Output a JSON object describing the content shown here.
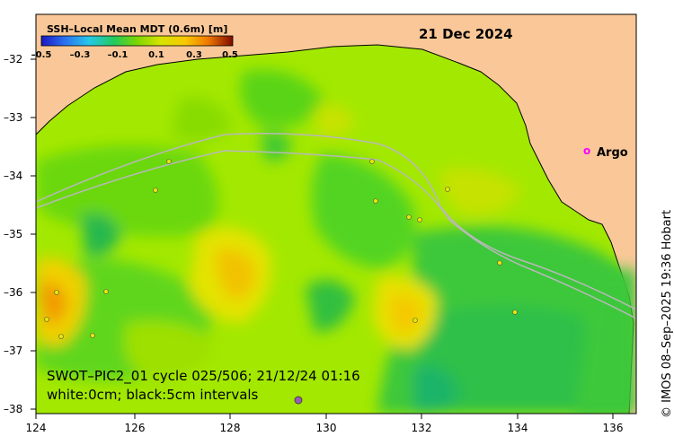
{
  "colorbar": {
    "title": "SSH–Local Mean MDT (0.6m) [m]",
    "ticks": [
      "–0.5",
      "–0.3",
      "–0.1",
      "0.1",
      "0.3",
      "0.5"
    ]
  },
  "date": "21 Dec 2024",
  "argo_marker": "o",
  "argo_label": "Argo",
  "caption": {
    "line1": "SWOT–PIC2_01 cycle 025/506; 21/12/24 01:16",
    "line2": "white:0cm; black:5cm intervals"
  },
  "copyright": "© IMOS 08–Sep–2025 19:36 Hobart",
  "axes": {
    "x_ticks": [
      "124",
      "126",
      "128",
      "130",
      "132",
      "134",
      "136"
    ],
    "y_ticks": [
      "–32",
      "–33",
      "–34",
      "–35",
      "–36",
      "–37",
      "–38"
    ]
  },
  "colors": {
    "land": "#fac898",
    "ocean_base": "#99e600",
    "colormap": [
      "#1b17c0",
      "#2a6ff0",
      "#25c8e8",
      "#22c95b",
      "#7dd600",
      "#d6e300",
      "#f7c900",
      "#f07a00",
      "#c42a00",
      "#7f0a00"
    ],
    "argo": "#ff00ff"
  }
}
